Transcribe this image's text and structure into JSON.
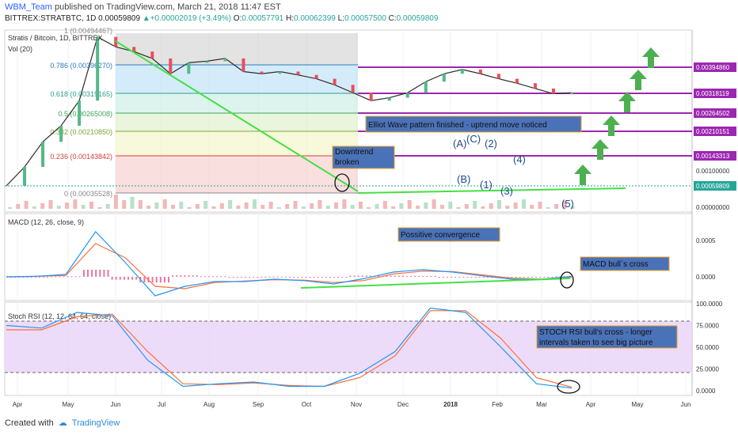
{
  "header": {
    "user": "WBM_Team",
    "published": " published on TradingView.com, March 21, 2018 11:47 EST",
    "symbol": "BITTREX:STRATBTC, 1D",
    "last": "0.00059809",
    "change": "+0.00002019 (+3.49%)",
    "o_label": "O:",
    "o": "0.00057791",
    "h_label": "H:",
    "h": "0.00062399",
    "l_label": "L:",
    "l": "0.00057500",
    "c_label": "C:",
    "c": "0.00059809"
  },
  "footer": {
    "created_with": "Created with",
    "brand": "TradingView"
  },
  "colors": {
    "green_line": "#44e044",
    "purple_line": "#9c27b0",
    "price_box": "#9c27b0",
    "current_box": "#26a69a",
    "macd_line": "#2196f3",
    "signal_line": "#ff6d3a",
    "stoch_k": "#2196f3",
    "stoch_d": "#ff6d3a",
    "stoch_band": "#e9d3f7",
    "annotation_bg": "#4a72b8",
    "arrow_green": "#4caf50"
  },
  "chart_data": [
    {
      "type": "line",
      "title": "Stratis / Bitcoin, 1D, BITTREX",
      "indicator": "Vol (20)",
      "x_axis_labels": [
        "Apr",
        "May",
        "Jun",
        "Jul",
        "Aug",
        "Sep",
        "Oct",
        "Nov",
        "Dec",
        "2018",
        "Feb",
        "Mar",
        "Apr",
        "May",
        "Jun"
      ],
      "y_scale": "log",
      "y_axis_labels": [
        "0.00394860",
        "0.00318119",
        "0.00264502",
        "0.00210151",
        "0.00143313",
        "0.00100000",
        "0.00059809",
        "0.00000000"
      ],
      "current_price": 0.00059809,
      "fibonacci": [
        {
          "level": "0.786",
          "value": "(0.00396270)"
        },
        {
          "level": "0.618",
          "value": "(0.00319165)"
        },
        {
          "level": "0.5",
          "value": "(0.00265008)"
        },
        {
          "level": "0.382",
          "value": "(0.00210850)"
        },
        {
          "level": "0.236",
          "value": "(0.00143842)"
        },
        {
          "level": "0",
          "value": "(0.00035528)"
        },
        {
          "level": "1",
          "value": "(0.00494467)"
        }
      ],
      "target_levels": [
        0.0039486,
        0.00318119,
        0.00264502,
        0.00210151,
        0.00143313
      ],
      "price_series": [
        [
          "Apr",
          2e-05
        ],
        [
          "Apr 20",
          4e-05
        ],
        [
          "May",
          0.0001
        ],
        [
          "May 15",
          0.00018
        ],
        [
          "Jun",
          0.00045
        ],
        [
          "Jun 3",
          0.0046
        ],
        [
          "Jun 10",
          0.0032
        ],
        [
          "Jun 20",
          0.0027
        ],
        [
          "Jul",
          0.0021
        ],
        [
          "Jul 10",
          0.0012
        ],
        [
          "Jul 20",
          0.0018
        ],
        [
          "Aug",
          0.0019
        ],
        [
          "Aug 10",
          0.0021
        ],
        [
          "Aug 20",
          0.0013
        ],
        [
          "Sep",
          0.0012
        ],
        [
          "Sep 10",
          0.0013
        ],
        [
          "Sep 20",
          0.00115
        ],
        [
          "Oct",
          0.001
        ],
        [
          "Oct 15",
          0.0008
        ],
        [
          "Oct 25",
          0.0006
        ],
        [
          "Nov",
          0.00045
        ],
        [
          "Nov 15",
          0.0005
        ],
        [
          "Dec",
          0.0006
        ],
        [
          "Dec 15",
          0.0009
        ],
        [
          "2018",
          0.0012
        ],
        [
          "Jan 10",
          0.0014
        ],
        [
          "Jan 20",
          0.0012
        ],
        [
          "Feb",
          0.001
        ],
        [
          "Feb 15",
          0.00085
        ],
        [
          "Mar",
          0.0007
        ],
        [
          "Mar 15",
          0.00058
        ],
        [
          "Mar 21",
          0.0006
        ]
      ],
      "annotations": {
        "downtrend": "Downtrend broken",
        "elliot": "Elliot Wave pattern finished - uptrend move noticed",
        "waves": [
          "(A)",
          "(C)",
          "(2)",
          "(B)",
          "(1)",
          "(3)",
          "(4)",
          "(5)"
        ]
      }
    },
    {
      "type": "line",
      "title": "MACD (12, 26, close, 9)",
      "y_axis_labels": [
        "0.0005",
        "0.0000"
      ],
      "annotations": [
        "Possitive convergence",
        "MACD bull`s cross"
      ],
      "series": [
        {
          "name": "MACD",
          "values": [
            0,
            1e-05,
            5e-05,
            0.00095,
            0.0003,
            -0.0004,
            -0.0002,
            -0.0001,
            -0.0001,
            -5e-05,
            -8e-05,
            -0.00015,
            -4e-05,
            0.0001,
            0.00015,
            0.0001,
            2e-05,
            -5e-05,
            -5e-05,
            1e-05
          ]
        },
        {
          "name": "Signal",
          "values": [
            0,
            1e-05,
            3e-05,
            0.0007,
            0.0004,
            -0.0002,
            -0.00025,
            -0.00012,
            -9e-05,
            -6e-05,
            -7e-05,
            -0.00012,
            -8e-05,
            6e-05,
            0.00012,
            0.00011,
            4e-05,
            -3e-05,
            -5e-05,
            -1e-05
          ]
        }
      ]
    },
    {
      "type": "line",
      "title": "Stoch RSI (12, 12, 64, 64, close)",
      "y_axis_labels": [
        "100.0000",
        "75.0000",
        "50.0000",
        "25.0000",
        "0.0000"
      ],
      "ylim": [
        0,
        100
      ],
      "bands": [
        20,
        80
      ],
      "annotation": "STOCH RSI bull's cross - longer intervals taken to see big picture",
      "series": [
        {
          "name": "K",
          "values": [
            75,
            72,
            90,
            86,
            35,
            5,
            8,
            10,
            5,
            5,
            20,
            45,
            95,
            90,
            50,
            8,
            3
          ]
        },
        {
          "name": "D",
          "values": [
            70,
            70,
            85,
            88,
            45,
            8,
            7,
            9,
            6,
            5,
            15,
            40,
            92,
            92,
            60,
            15,
            4
          ]
        }
      ]
    }
  ]
}
